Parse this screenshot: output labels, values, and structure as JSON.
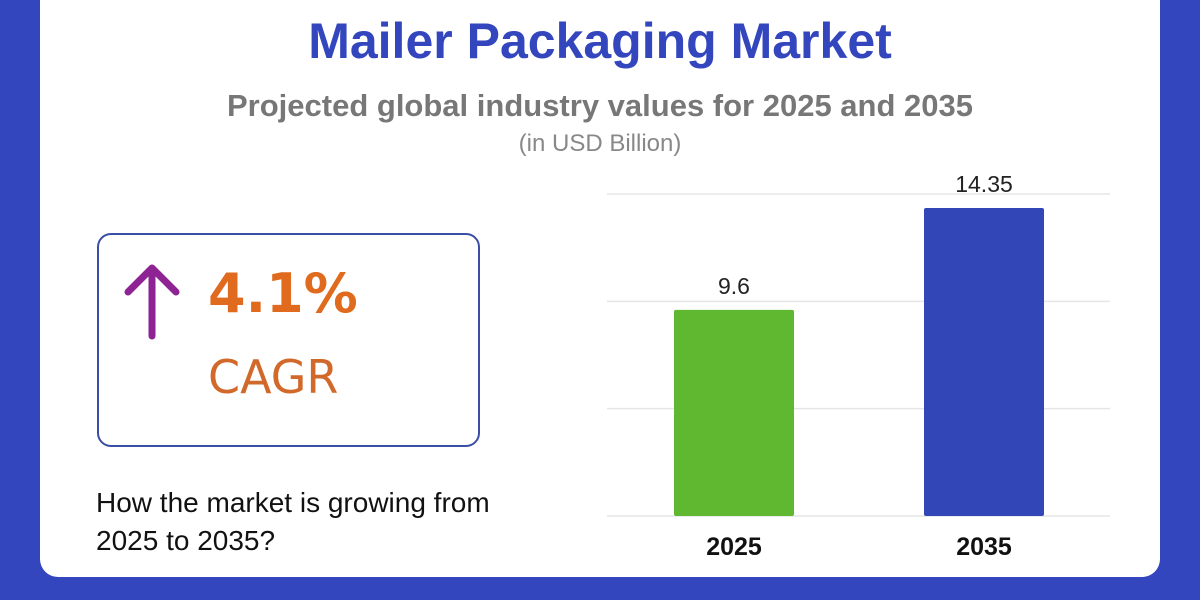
{
  "header": {
    "title": "Mailer Packaging Market",
    "subtitle": "Projected global industry values for 2025 and 2035",
    "unit": "(in USD Billion)"
  },
  "cagr": {
    "value": "4.1%",
    "label": "CAGR",
    "icon": "arrow-up-icon",
    "arrow_color": "#8e2394",
    "value_color": "#e06a1e"
  },
  "question": "How the market is growing from 2025 to 2035?",
  "colors": {
    "background": "#3346be",
    "title": "#3346be"
  },
  "chart_data": {
    "type": "bar",
    "categories": [
      "2025",
      "2035"
    ],
    "values": [
      9.6,
      14.35
    ],
    "data_labels": [
      "9.6",
      "14.35"
    ],
    "colors": [
      "#60b830",
      "#3346b8"
    ],
    "ylim": [
      0,
      15
    ],
    "grid": true,
    "gridline_values": [
      0,
      5,
      10,
      15
    ],
    "title": "",
    "xlabel": "",
    "ylabel": ""
  }
}
